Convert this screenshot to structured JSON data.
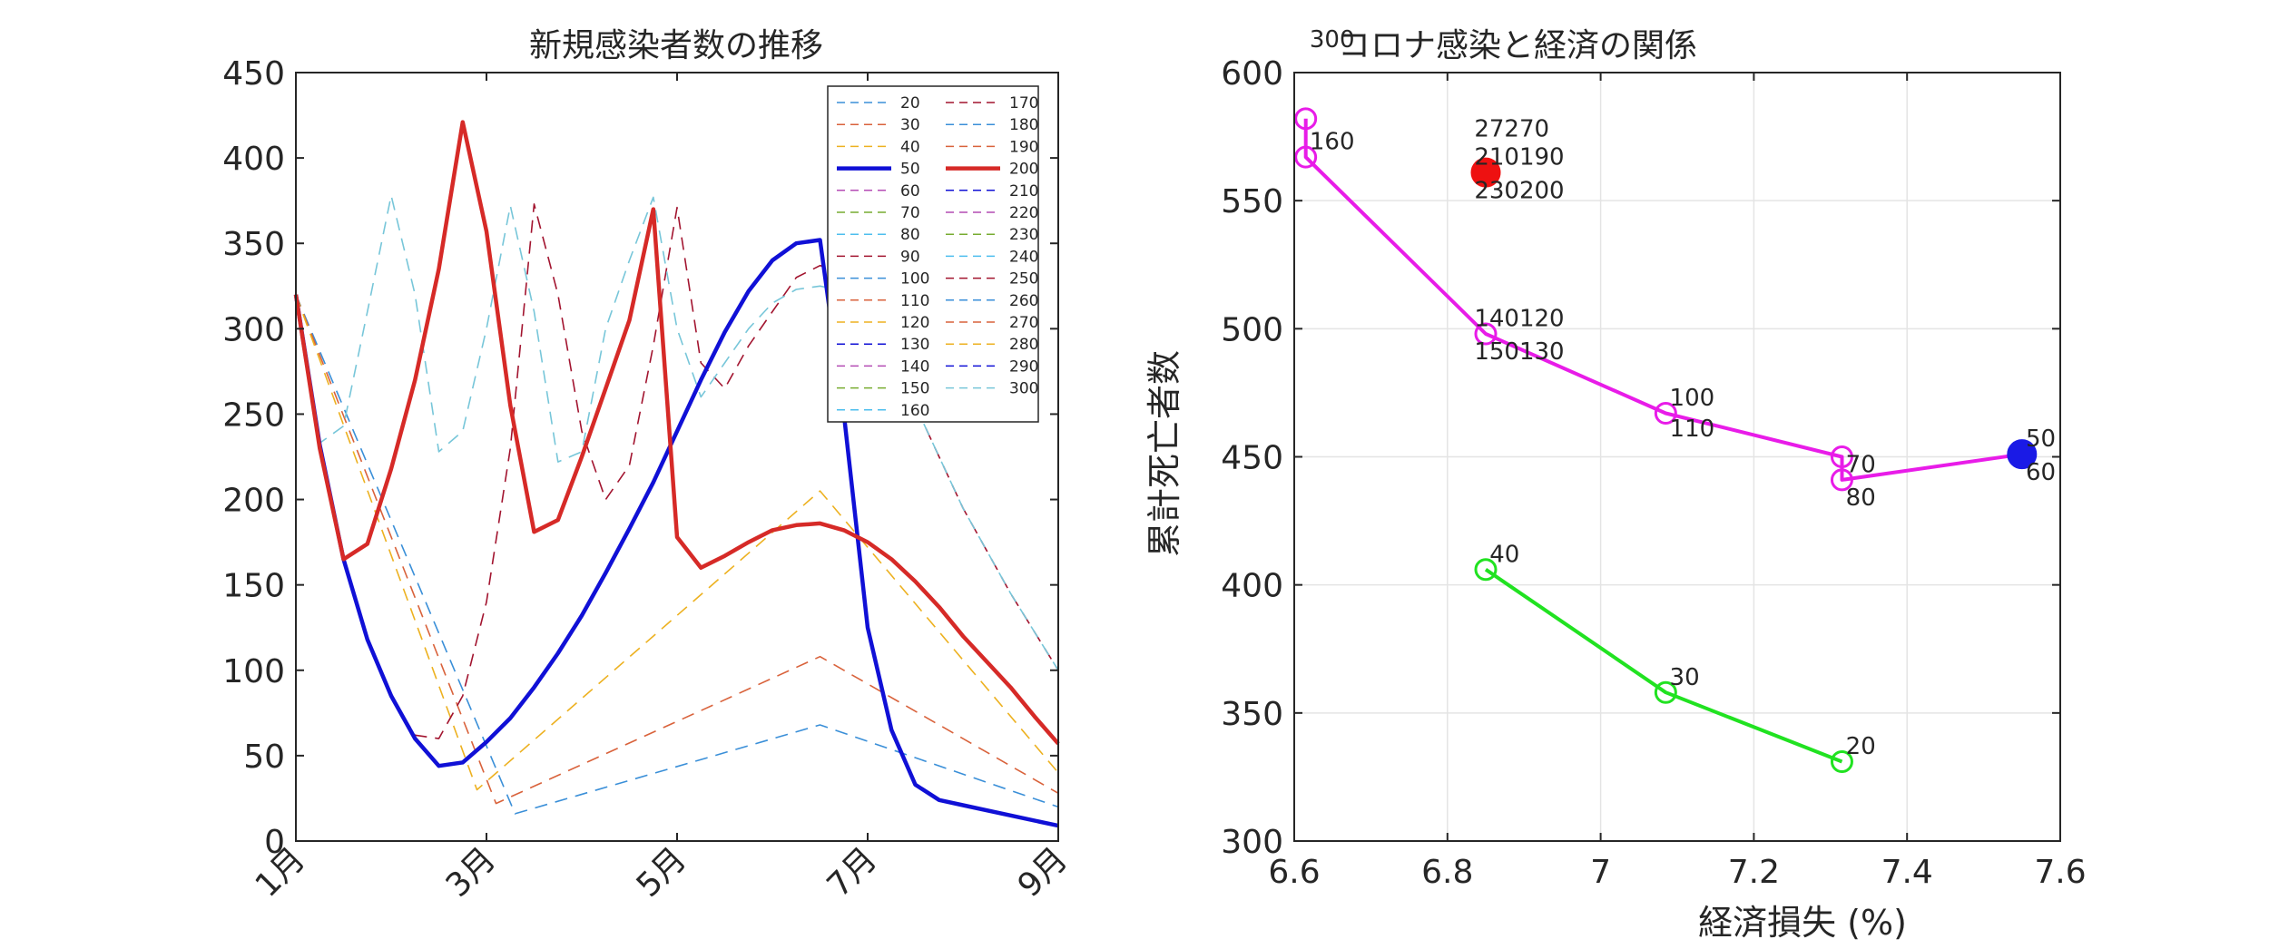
{
  "chart_data": [
    {
      "type": "line",
      "title": "新規感染者数の推移",
      "xlabel": "",
      "ylabel": "",
      "x_tick_labels": [
        "1月",
        "3月",
        "5月",
        "7月",
        "9月"
      ],
      "x_months": [
        1,
        3,
        5,
        7,
        9
      ],
      "xlim": [
        1,
        9
      ],
      "ylim": [
        0,
        450
      ],
      "y_ticks": [
        0,
        50,
        100,
        150,
        200,
        250,
        300,
        350,
        400,
        450
      ],
      "grid": false,
      "legend": {
        "placement": "top-right",
        "columns": 2,
        "entries": [
          "20",
          "30",
          "40",
          "50",
          "60",
          "70",
          "80",
          "90",
          "100",
          "110",
          "120",
          "130",
          "140",
          "150",
          "160",
          "170",
          "180",
          "190",
          "200",
          "210",
          "220",
          "230",
          "240",
          "250",
          "260",
          "270",
          "280",
          "290",
          "300"
        ]
      },
      "series": [
        {
          "name": "20",
          "color": "#3a8fd8",
          "highlight": false,
          "x": [
            1.0,
            3.3,
            6.5,
            9.0
          ],
          "y": [
            320,
            16,
            68,
            20
          ]
        },
        {
          "name": "30",
          "color": "#d9623b",
          "highlight": false,
          "x": [
            1.0,
            3.1,
            6.5,
            9.0
          ],
          "y": [
            320,
            22,
            108,
            28
          ]
        },
        {
          "name": "40",
          "color": "#edb120",
          "highlight": false,
          "x": [
            1.0,
            2.9,
            6.5,
            9.0
          ],
          "y": [
            320,
            30,
            205,
            40
          ]
        },
        {
          "name": "50",
          "color": "#1010d6",
          "highlight": true,
          "x": [
            1.0,
            1.25,
            1.5,
            1.75,
            2.0,
            2.25,
            2.5,
            2.75,
            3.0,
            3.25,
            3.5,
            3.75,
            4.0,
            4.25,
            4.5,
            4.75,
            5.0,
            5.25,
            5.5,
            5.75,
            6.0,
            6.25,
            6.5,
            6.75,
            7.0,
            7.25,
            7.5,
            7.75,
            8.0,
            8.5,
            9.0
          ],
          "y": [
            320,
            232,
            165,
            118,
            85,
            60,
            44,
            46,
            58,
            72,
            90,
            110,
            132,
            157,
            183,
            210,
            240,
            270,
            298,
            322,
            340,
            350,
            352,
            250,
            125,
            65,
            33,
            24,
            21,
            15,
            9
          ]
        },
        {
          "name": "90",
          "color": "#a2142f",
          "highlight": false,
          "x": [
            1.0,
            1.25,
            1.5,
            1.75,
            2.0,
            2.25,
            2.5,
            2.75,
            3.0,
            3.25,
            3.5,
            3.75,
            4.0,
            4.25,
            4.5,
            4.75,
            5.0,
            5.25,
            5.5,
            5.75,
            6.0,
            6.25,
            6.5,
            6.75,
            7.0,
            7.5,
            8.0,
            8.5,
            9.0
          ],
          "y": [
            320,
            232,
            165,
            118,
            85,
            62,
            60,
            85,
            140,
            230,
            373,
            320,
            240,
            200,
            220,
            290,
            371,
            280,
            265,
            290,
            310,
            330,
            337,
            333,
            310,
            255,
            195,
            145,
            100
          ]
        },
        {
          "name": "300",
          "color": "#77c6d9",
          "highlight": false,
          "x": [
            1.0,
            1.25,
            1.5,
            1.75,
            2.0,
            2.25,
            2.5,
            2.75,
            3.0,
            3.25,
            3.5,
            3.75,
            4.0,
            4.25,
            4.5,
            4.75,
            5.0,
            5.25,
            5.5,
            5.75,
            6.0,
            6.25,
            6.5,
            6.75,
            7.0,
            7.5,
            8.0,
            8.5,
            9.0
          ],
          "y": [
            320,
            233,
            243,
            310,
            378,
            320,
            228,
            240,
            300,
            372,
            310,
            222,
            228,
            300,
            340,
            377,
            300,
            260,
            280,
            300,
            315,
            323,
            325,
            322,
            305,
            255,
            195,
            145,
            100
          ]
        },
        {
          "name": "200",
          "color": "#d62a27",
          "highlight": true,
          "x": [
            1.0,
            1.25,
            1.5,
            1.75,
            2.0,
            2.25,
            2.5,
            2.75,
            3.0,
            3.25,
            3.5,
            3.75,
            4.0,
            4.25,
            4.5,
            4.75,
            5.0,
            5.25,
            5.5,
            5.75,
            6.0,
            6.25,
            6.5,
            6.75,
            7.0,
            7.25,
            7.5,
            7.75,
            8.0,
            8.25,
            8.5,
            8.75,
            9.0
          ],
          "y": [
            320,
            230,
            165,
            174,
            218,
            270,
            335,
            421,
            357,
            255,
            181,
            188,
            225,
            265,
            305,
            370,
            178,
            160,
            167,
            175,
            182,
            185,
            186,
            182,
            175,
            165,
            152,
            137,
            120,
            105,
            90,
            73,
            57
          ]
        }
      ]
    },
    {
      "type": "scatter",
      "title": "コロナ感染と経済の関係",
      "xlabel": "経済損失 (%)",
      "ylabel": "累計死亡者数",
      "xlim": [
        6.6,
        7.6
      ],
      "ylim": [
        300,
        600
      ],
      "x_ticks": [
        6.6,
        6.8,
        7.0,
        7.2,
        7.4,
        7.6
      ],
      "x_tick_labels": [
        "6.6",
        "6.8",
        "7",
        "7.2",
        "7.4",
        "7.6"
      ],
      "y_ticks": [
        300,
        350,
        400,
        450,
        500,
        550,
        600
      ],
      "grid": true,
      "lines": [
        {
          "color": "#21e221",
          "points": [
            [
              6.85,
              406
            ],
            [
              7.085,
              358
            ],
            [
              7.315,
              331
            ]
          ]
        },
        {
          "color": "#e81ce8",
          "points": [
            [
              7.55,
              451
            ],
            [
              7.315,
              441
            ],
            [
              7.315,
              450
            ],
            [
              7.085,
              467
            ],
            [
              6.85,
              498
            ],
            [
              6.615,
              567
            ],
            [
              6.615,
              582
            ]
          ]
        }
      ],
      "markers": [
        {
          "x": 6.85,
          "y": 406,
          "color": "#21e221"
        },
        {
          "x": 7.085,
          "y": 358,
          "color": "#21e221"
        },
        {
          "x": 7.315,
          "y": 331,
          "color": "#21e221"
        },
        {
          "x": 7.315,
          "y": 450,
          "color": "#e81ce8"
        },
        {
          "x": 7.315,
          "y": 441,
          "color": "#e81ce8"
        },
        {
          "x": 7.085,
          "y": 467,
          "color": "#e81ce8"
        },
        {
          "x": 6.85,
          "y": 498,
          "color": "#e81ce8"
        },
        {
          "x": 6.615,
          "y": 567,
          "color": "#e81ce8"
        },
        {
          "x": 6.615,
          "y": 582,
          "color": "#e81ce8"
        }
      ],
      "highlights": [
        {
          "x": 7.55,
          "y": 451,
          "color": "#1a1ae6"
        },
        {
          "x": 6.85,
          "y": 561,
          "color": "#ee1111"
        }
      ],
      "point_labels": [
        {
          "text": "20",
          "x": 7.32,
          "y": 334
        },
        {
          "text": "30",
          "x": 7.09,
          "y": 361
        },
        {
          "text": "40",
          "x": 6.855,
          "y": 409
        },
        {
          "text": "50",
          "x": 7.555,
          "y": 454
        },
        {
          "text": "60",
          "x": 7.555,
          "y": 441
        },
        {
          "text": "70",
          "x": 7.32,
          "y": 444
        },
        {
          "text": "80",
          "x": 7.32,
          "y": 431
        },
        {
          "text": "100",
          "x": 7.09,
          "y": 470
        },
        {
          "text": "110",
          "x": 7.09,
          "y": 458
        },
        {
          "text": "140120",
          "x": 6.835,
          "y": 501
        },
        {
          "text": "150130",
          "x": 6.835,
          "y": 488
        },
        {
          "text": "160",
          "x": 6.62,
          "y": 570
        },
        {
          "text": "27270",
          "x": 6.835,
          "y": 575
        },
        {
          "text": "210190",
          "x": 6.835,
          "y": 564
        },
        {
          "text": "230200",
          "x": 6.835,
          "y": 551
        },
        {
          "text": "300",
          "x": 6.62,
          "y": 610
        }
      ]
    }
  ]
}
